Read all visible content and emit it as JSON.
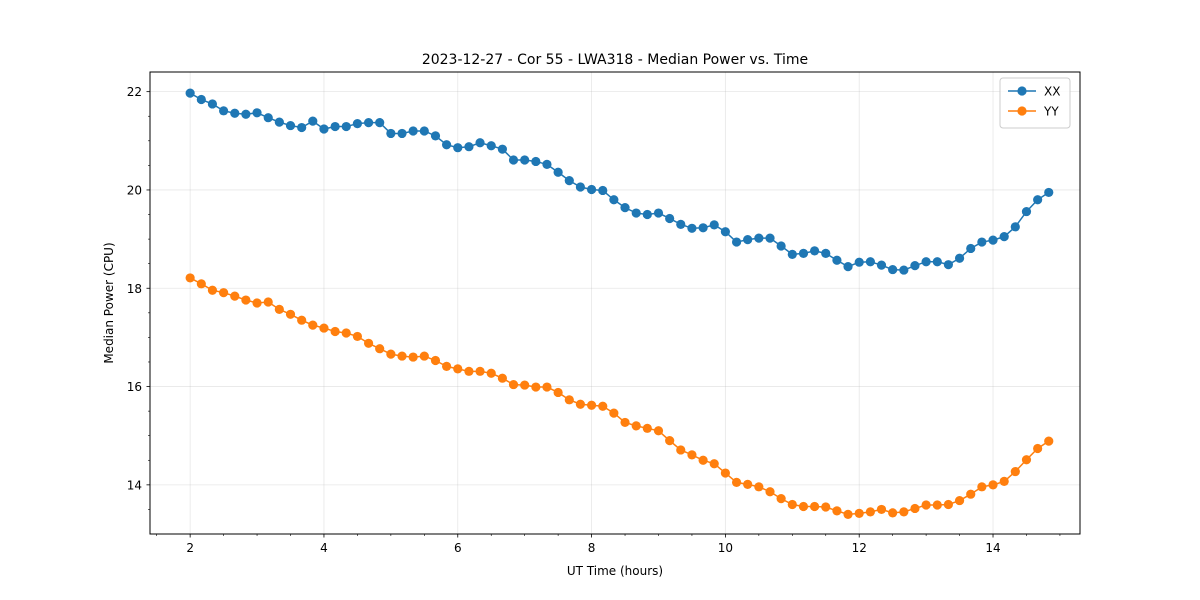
{
  "chart_data": {
    "type": "line",
    "title": "2023-12-27 - Cor 55 - LWA318 - Median Power vs. Time",
    "xlabel": "UT Time (hours)",
    "ylabel": "Median Power (CPU)",
    "xlim": [
      1.4,
      15.3
    ],
    "ylim": [
      13.0,
      22.4
    ],
    "xticks": [
      2,
      4,
      6,
      8,
      10,
      12,
      14
    ],
    "xtick_labels": [
      "2",
      "4",
      "6",
      "8",
      "10",
      "12",
      "14"
    ],
    "yticks": [
      14,
      16,
      18,
      20,
      22
    ],
    "ytick_labels": [
      "14",
      "16",
      "18",
      "20",
      "22"
    ],
    "grid": true,
    "legend_position": "top-right",
    "x": [
      2.0,
      2.167,
      2.333,
      2.5,
      2.667,
      2.833,
      3.0,
      3.167,
      3.333,
      3.5,
      3.667,
      3.833,
      4.0,
      4.167,
      4.333,
      4.5,
      4.667,
      4.833,
      5.0,
      5.167,
      5.333,
      5.5,
      5.667,
      5.833,
      6.0,
      6.167,
      6.333,
      6.5,
      6.667,
      6.833,
      7.0,
      7.167,
      7.333,
      7.5,
      7.667,
      7.833,
      8.0,
      8.167,
      8.333,
      8.5,
      8.667,
      8.833,
      9.0,
      9.167,
      9.333,
      9.5,
      9.667,
      9.833,
      10.0,
      10.167,
      10.333,
      10.5,
      10.667,
      10.833,
      11.0,
      11.167,
      11.333,
      11.5,
      11.667,
      11.833,
      12.0,
      12.167,
      12.333,
      12.5,
      12.667,
      12.833,
      13.0,
      13.167,
      13.333,
      13.5,
      13.667,
      13.833,
      14.0,
      14.167,
      14.333,
      14.5,
      14.667,
      14.833
    ],
    "series": [
      {
        "name": "XX",
        "color": "#1f77b4",
        "values": [
          21.97,
          21.84,
          21.75,
          21.61,
          21.56,
          21.54,
          21.57,
          21.47,
          21.38,
          21.31,
          21.27,
          21.4,
          21.24,
          21.29,
          21.29,
          21.35,
          21.37,
          21.37,
          21.15,
          21.15,
          21.2,
          21.2,
          21.1,
          20.92,
          20.86,
          20.88,
          20.96,
          20.9,
          20.83,
          20.61,
          20.61,
          20.58,
          20.52,
          20.36,
          20.19,
          20.06,
          20.01,
          19.99,
          19.8,
          19.64,
          19.53,
          19.5,
          19.53,
          19.42,
          19.3,
          19.22,
          19.23,
          19.29,
          19.15,
          18.94,
          18.99,
          19.02,
          19.02,
          18.86,
          18.69,
          18.71,
          18.76,
          18.71,
          18.57,
          18.44,
          18.53,
          18.54,
          18.47,
          18.38,
          18.37,
          18.46,
          18.54,
          18.54,
          18.48,
          18.61,
          18.81,
          18.94,
          18.98,
          19.05,
          19.25,
          19.56,
          19.8,
          19.95
        ]
      },
      {
        "name": "YY",
        "color": "#ff7f0e",
        "values": [
          18.21,
          18.09,
          17.96,
          17.91,
          17.84,
          17.76,
          17.7,
          17.72,
          17.57,
          17.47,
          17.35,
          17.25,
          17.19,
          17.12,
          17.09,
          17.02,
          16.88,
          16.77,
          16.66,
          16.62,
          16.6,
          16.62,
          16.53,
          16.41,
          16.36,
          16.31,
          16.31,
          16.27,
          16.17,
          16.04,
          16.03,
          15.99,
          15.99,
          15.88,
          15.73,
          15.64,
          15.62,
          15.6,
          15.46,
          15.27,
          15.2,
          15.15,
          15.1,
          14.9,
          14.71,
          14.61,
          14.5,
          14.43,
          14.24,
          14.05,
          14.01,
          13.96,
          13.86,
          13.72,
          13.6,
          13.56,
          13.56,
          13.55,
          13.47,
          13.4,
          13.42,
          13.45,
          13.5,
          13.43,
          13.45,
          13.52,
          13.59,
          13.59,
          13.6,
          13.68,
          13.81,
          13.96,
          14.0,
          14.07,
          14.27,
          14.51,
          14.74,
          14.89
        ]
      }
    ]
  }
}
